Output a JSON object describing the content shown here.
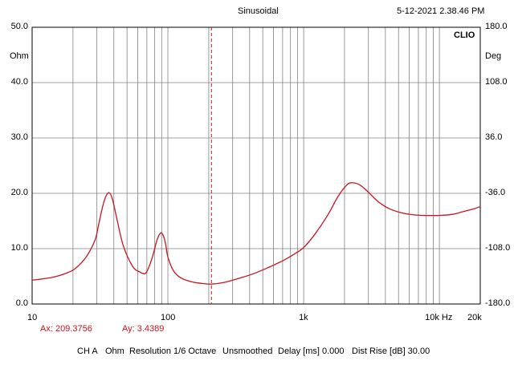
{
  "header": {
    "mode": "Sinusoidal",
    "datetime": "5-12-2021 2.38.46 PM",
    "brand": "CLIO"
  },
  "cursor_readout": {
    "ax": "Ax: 209.3756",
    "ay": "Ay: 3.4389"
  },
  "footer": {
    "channel": "CH A",
    "unit": "Ohm",
    "resolution": "Resolution 1/6 Octave",
    "smoothing": "Unsmoothed",
    "delay": "Delay [ms] 0.000",
    "dist_rise": "Dist Rise [dB] 30.00"
  },
  "colors": {
    "curve": "#c8141e",
    "cursor": "#c8141e",
    "grid": "#808080",
    "frame": "#000000"
  },
  "chart_data": {
    "type": "line",
    "x_scale": "log",
    "grid": true,
    "xlim": [
      10,
      20000
    ],
    "ylim": [
      0,
      50
    ],
    "y2lim": [
      -180,
      180
    ],
    "y_unit": "Ohm",
    "y2_unit": "Deg",
    "x_tick_labels": [
      "10",
      "100",
      "1k",
      "10k Hz",
      "20k"
    ],
    "x_tick_values": [
      10,
      100,
      1000,
      10000,
      20000
    ],
    "y_tick_labels": [
      "0.0",
      "10.0",
      "20.0",
      "30.0",
      "40.0",
      "50.0"
    ],
    "y_tick_values": [
      0,
      10,
      20,
      30,
      40,
      50
    ],
    "y2_tick_labels": [
      "-180.0",
      "-108.0",
      "-36.0",
      "36.0",
      "108.0",
      "180.0"
    ],
    "cursor_x": 209.3756,
    "series": [
      {
        "x": [
          10,
          14,
          18,
          21,
          25,
          29,
          31,
          33,
          35,
          37,
          39,
          42,
          47,
          55,
          62,
          68,
          72,
          78,
          83,
          88,
          92,
          96,
          100,
          110,
          125,
          150,
          180,
          210,
          260,
          330,
          420,
          550,
          700,
          850,
          1000,
          1200,
          1500,
          1800,
          2100,
          2300,
          2600,
          3000,
          3500,
          4200,
          5200,
          6500,
          8000,
          10000,
          12500,
          15000,
          18000,
          20000
        ],
        "y": [
          4.3,
          4.8,
          5.6,
          6.5,
          8.5,
          11.5,
          14.5,
          17.5,
          19.5,
          20.1,
          19.0,
          15.5,
          10.5,
          6.8,
          5.8,
          5.5,
          6.5,
          9.0,
          11.5,
          12.8,
          12.5,
          11.0,
          8.5,
          6.0,
          4.7,
          4.0,
          3.7,
          3.6,
          3.9,
          4.6,
          5.4,
          6.6,
          7.8,
          9.0,
          10.2,
          12.5,
          16.0,
          19.5,
          21.6,
          21.9,
          21.5,
          20.2,
          18.6,
          17.3,
          16.5,
          16.1,
          16.0,
          16.0,
          16.2,
          16.7,
          17.2,
          17.6
        ]
      }
    ]
  }
}
